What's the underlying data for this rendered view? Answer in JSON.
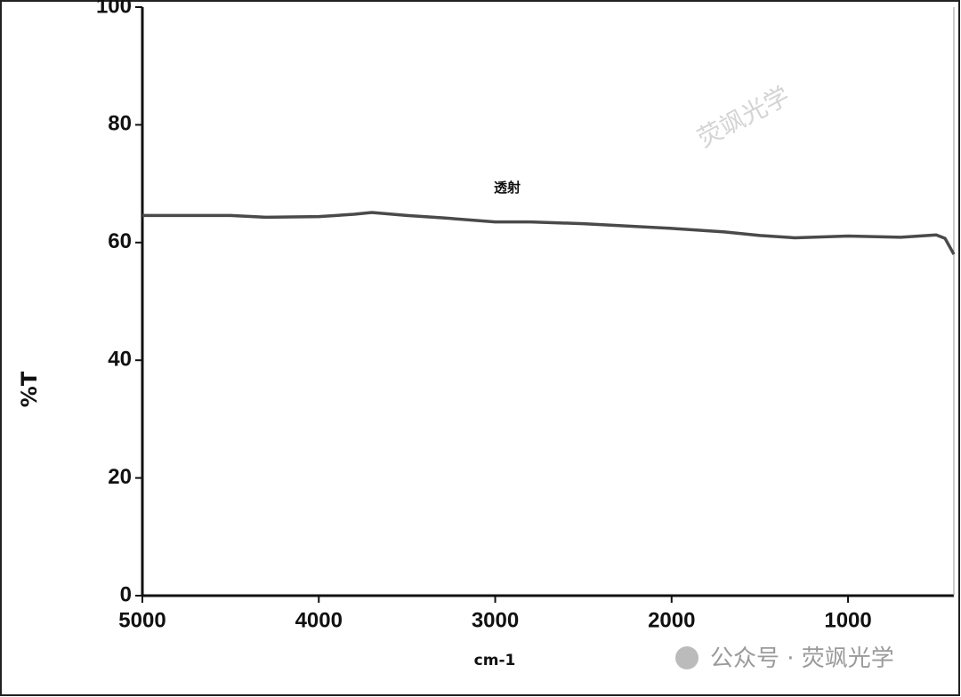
{
  "chart_data": {
    "type": "line",
    "y_label": "%T",
    "x_label": "cm-1",
    "annotation": "透射",
    "watermark": "荧飒光学",
    "footer_watermark": "公众号 · 荧飒光学",
    "x": [
      5000,
      4500,
      4300,
      4000,
      3800,
      3700,
      3500,
      3300,
      3000,
      2800,
      2500,
      2000,
      1700,
      1500,
      1300,
      1000,
      700,
      500,
      450,
      400
    ],
    "series": [
      {
        "name": "透射",
        "color": "#4a4a4a",
        "values": [
          64.6,
          64.6,
          64.3,
          64.4,
          64.8,
          65.1,
          64.6,
          64.2,
          63.5,
          63.5,
          63.2,
          62.4,
          61.8,
          61.2,
          60.8,
          61.1,
          60.9,
          61.3,
          60.7,
          58.0
        ]
      }
    ],
    "xlim": [
      5000,
      400
    ],
    "xticks": [
      5000,
      4000,
      3000,
      2000,
      1000
    ],
    "ylim": [
      0,
      100
    ],
    "yticks": [
      0,
      20,
      40,
      60,
      80,
      100
    ]
  }
}
